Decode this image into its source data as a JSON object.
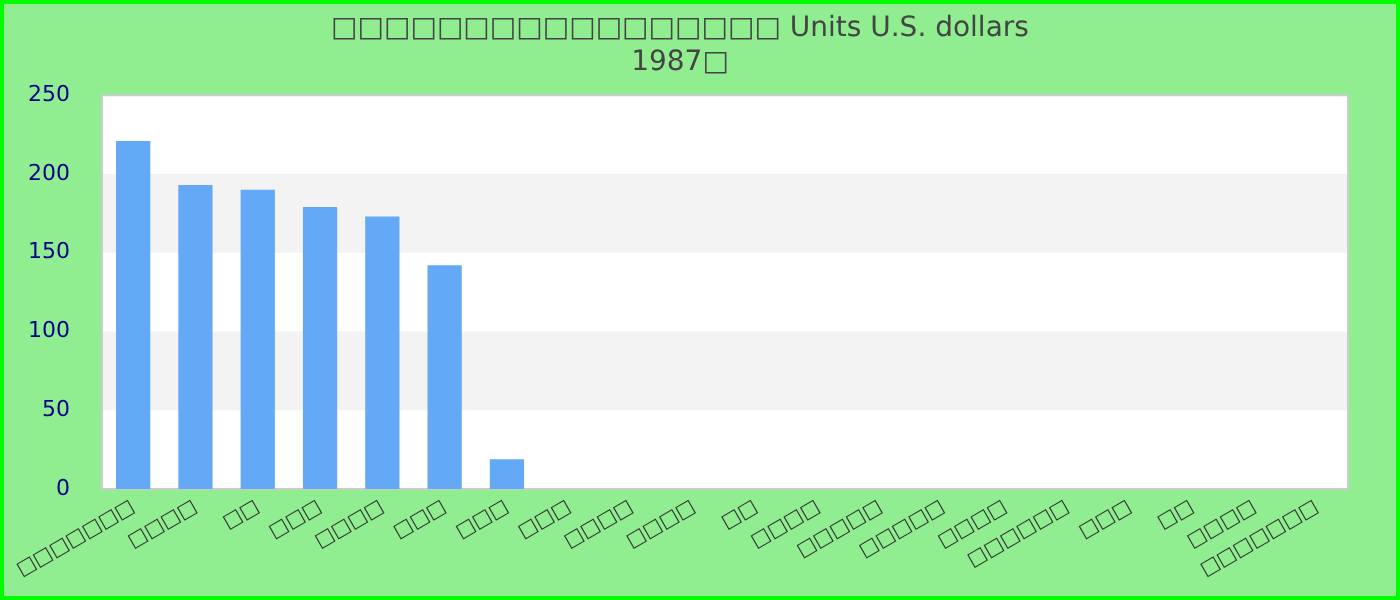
{
  "chart_data": {
    "type": "bar",
    "title": [
      "□□□□□□□□□□□□□□□□□ Units U.S. dollars",
      "1987□"
    ],
    "categories": [
      "□□□□□□□",
      "□□□□",
      "□□",
      "□□□",
      "□□□□",
      "□□□",
      "□□□",
      "□□□",
      "□□□□",
      "□□□□",
      "□□",
      "□□□□",
      "□□□□□",
      "□□□□□",
      "□□□□",
      "□□□□□□",
      "□□□",
      "□□",
      "□□□□",
      "□□□□□□□"
    ],
    "values": [
      221,
      193,
      190,
      179,
      173,
      142,
      19,
      0,
      0,
      0,
      0,
      0,
      0,
      0,
      0,
      0,
      0,
      0,
      0,
      0
    ],
    "color": "#63a9f5",
    "ylim": [
      0,
      250
    ],
    "yticks": [
      0,
      50,
      100,
      150,
      200,
      250
    ],
    "bands": [
      {
        "axis": "y",
        "from": 50,
        "to": 100,
        "color": "#f3f3f3"
      },
      {
        "axis": "y",
        "from": 150,
        "to": 200,
        "color": "#f3f3f3"
      }
    ],
    "legend": false
  }
}
